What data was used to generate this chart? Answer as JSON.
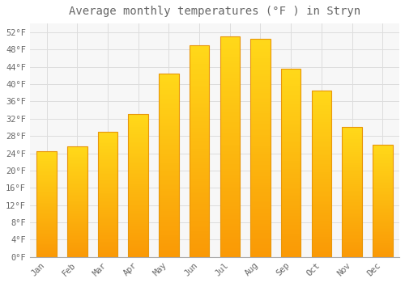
{
  "title": "Average monthly temperatures (°F ) in Stryn",
  "months": [
    "Jan",
    "Feb",
    "Mar",
    "Apr",
    "May",
    "Jun",
    "Jul",
    "Aug",
    "Sep",
    "Oct",
    "Nov",
    "Dec"
  ],
  "values": [
    24.5,
    25.5,
    29,
    33,
    42.5,
    49,
    51,
    50.5,
    43.5,
    38.5,
    30,
    26
  ],
  "bar_color": "#FFC020",
  "bar_edge_color": "#E8960A",
  "background_color": "#FFFFFF",
  "plot_bg_color": "#F7F7F7",
  "grid_color": "#DDDDDD",
  "text_color": "#666666",
  "ylim": [
    0,
    54
  ],
  "ytick_step": 4,
  "ytick_start": 0,
  "ytick_end": 52,
  "title_fontsize": 10,
  "tick_fontsize": 7.5,
  "bar_width": 0.65
}
